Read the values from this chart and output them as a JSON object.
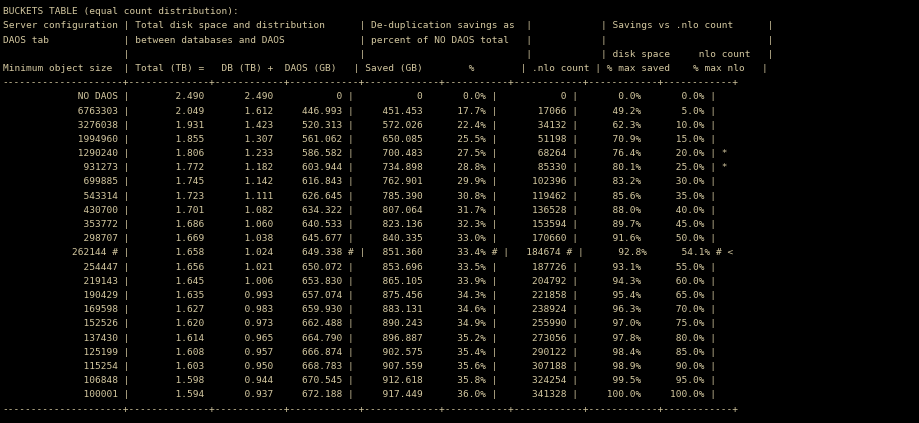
{
  "title": "BUCKETS TABLE (equal count distribution):",
  "background_color": "#000000",
  "text_color": "#d4c8a0",
  "font_size": 6.8,
  "lines": [
    "BUCKETS TABLE (equal count distribution):",
    "Server configuration | Total disk space and distribution      | De-duplication savings as  |            | Savings vs .nlo count      |",
    "DAOS tab             | between databases and DAOS             | percent of NO DAOS total   |            |                            |",
    "                     |                                        |                            |            | disk space     nlo count   |",
    "Minimum object size  | Total (TB) =   DB (TB) +  DAOS (GB)   | Saved (GB)        %        | .nlo count | % max saved    % max nlo   |",
    "---------------------+--------------+------------+------------+-------------+-----------+------------+------------+------------+",
    "             NO DAOS |        2.490       2.490           0 |           0       0.0% |           0 |       0.0%       0.0% |",
    "             6763303 |        2.049       1.612     446.993 |     451.453      17.7% |       17066 |      49.2%       5.0% |",
    "             3276038 |        1.931       1.423     520.313 |     572.026      22.4% |       34132 |      62.3%      10.0% |",
    "             1994960 |        1.855       1.307     561.062 |     650.085      25.5% |       51198 |      70.9%      15.0% |",
    "             1290240 |        1.806       1.233     586.582 |     700.483      27.5% |       68264 |      76.4%      20.0% | *",
    "              931273 |        1.772       1.182     603.944 |     734.898      28.8% |       85330 |      80.1%      25.0% | *",
    "              699885 |        1.745       1.142     616.843 |     762.901      29.9% |      102396 |      83.2%      30.0% |",
    "              543314 |        1.723       1.111     626.645 |     785.390      30.8% |      119462 |      85.6%      35.0% |",
    "              430700 |        1.701       1.082     634.322 |     807.064      31.7% |      136528 |      88.0%      40.0% |",
    "              353772 |        1.686       1.060     640.533 |     823.136      32.3% |      153594 |      89.7%      45.0% |",
    "              298707 |        1.669       1.038     645.677 |     840.335      33.0% |      170660 |      91.6%      50.0% |",
    "            262144 # |        1.658       1.024     649.338 # |   851.360      33.4% # |   184674 # |      92.8%      54.1% # <",
    "              254447 |        1.656       1.021     650.072 |     853.696      33.5% |      187726 |      93.1%      55.0% |",
    "              219143 |        1.645       1.006     653.830 |     865.105      33.9% |      204792 |      94.3%      60.0% |",
    "              190429 |        1.635       0.993     657.074 |     875.456      34.3% |      221858 |      95.4%      65.0% |",
    "              169598 |        1.627       0.983     659.930 |     883.131      34.6% |      238924 |      96.3%      70.0% |",
    "              152526 |        1.620       0.973     662.488 |     890.243      34.9% |      255990 |      97.0%      75.0% |",
    "              137430 |        1.614       0.965     664.790 |     896.887      35.2% |      273056 |      97.8%      80.0% |",
    "              125199 |        1.608       0.957     666.874 |     902.575      35.4% |      290122 |      98.4%      85.0% |",
    "              115254 |        1.603       0.950     668.783 |     907.559      35.6% |      307188 |      98.9%      90.0% |",
    "              106848 |        1.598       0.944     670.545 |     912.618      35.8% |      324254 |      99.5%      95.0% |",
    "              100001 |        1.594       0.937     672.188 |     917.449      36.0% |      341328 |     100.0%     100.0% |",
    "---------------------+--------------+------------+------------+-------------+-----------+------------+------------+------------+"
  ]
}
